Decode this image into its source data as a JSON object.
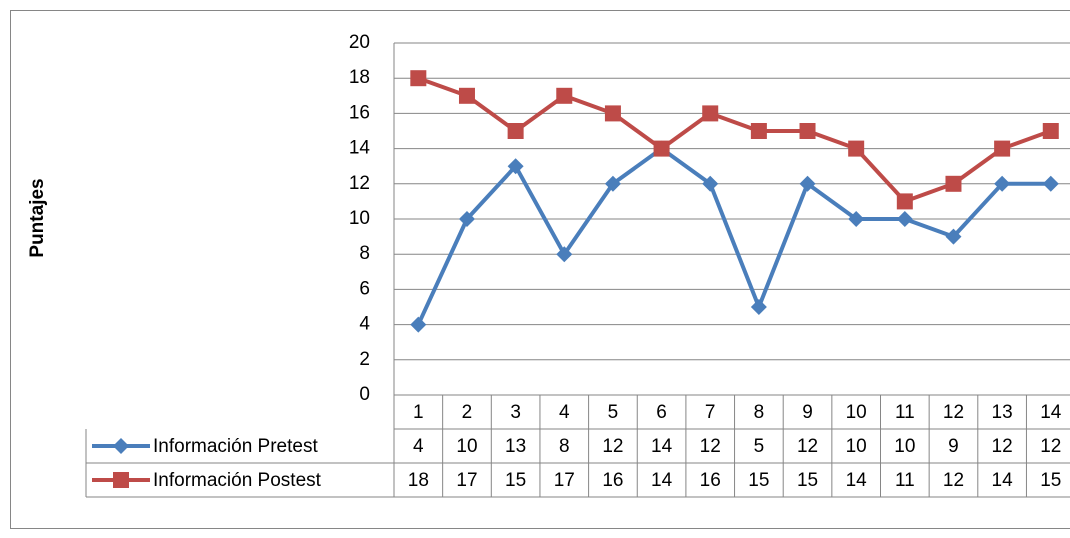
{
  "chart_data": {
    "type": "line",
    "y_axis_label": "Puntajes",
    "categories": [
      "1",
      "2",
      "3",
      "4",
      "5",
      "6",
      "7",
      "8",
      "9",
      "10",
      "11",
      "12",
      "13",
      "14"
    ],
    "series": [
      {
        "name": "Información Pretest",
        "color": "#4a7ebb",
        "marker": "diamond",
        "values": [
          4,
          10,
          13,
          8,
          12,
          14,
          12,
          5,
          12,
          10,
          10,
          9,
          12,
          12
        ]
      },
      {
        "name": "Información Postest",
        "color": "#be4b48",
        "marker": "square",
        "values": [
          18,
          17,
          15,
          17,
          16,
          14,
          16,
          15,
          15,
          14,
          11,
          12,
          14,
          15
        ]
      }
    ],
    "ylim": [
      0,
      20
    ],
    "yticks": [
      0,
      2,
      4,
      6,
      8,
      10,
      12,
      14,
      16,
      18,
      20
    ],
    "grid": true,
    "data_table": true
  }
}
